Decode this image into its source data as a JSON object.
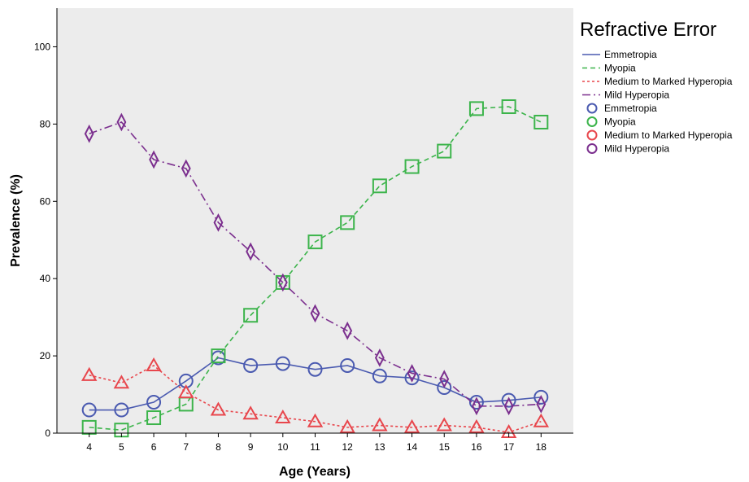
{
  "chart_data": {
    "type": "line",
    "title": "",
    "xlabel": "Age (Years)",
    "ylabel": "Prevalence (%)",
    "x": [
      4,
      5,
      6,
      7,
      8,
      9,
      10,
      11,
      12,
      13,
      14,
      15,
      16,
      17,
      18
    ],
    "x_tick_labels": [
      "4",
      "5",
      "6",
      "7",
      "8",
      "9",
      "10",
      "11",
      "12",
      "13",
      "14",
      "15",
      "16",
      "17",
      "18"
    ],
    "xlim": [
      3,
      19
    ],
    "ylim": [
      0,
      110
    ],
    "y_ticks": [
      0,
      20,
      40,
      60,
      80,
      100
    ],
    "y_tick_labels": [
      "0",
      "20",
      "40",
      "60",
      "80",
      "100"
    ],
    "grid": false,
    "background": "#ececec",
    "legend": {
      "title": "Refractive Error",
      "position": "right",
      "line_entries": [
        "Emmetropia",
        "Myopia",
        "Medium to Marked Hyperopia",
        "Mild Hyperopia"
      ],
      "marker_entries": [
        "Emmetropia",
        "Myopia",
        "Medium to Marked Hyperopia",
        "Mild Hyperopia"
      ]
    },
    "series": [
      {
        "name": "Emmetropia",
        "color": "#4a5ab0",
        "line_style": "solid",
        "marker": "circle",
        "values": [
          6.0,
          6.0,
          8.0,
          13.5,
          19.5,
          17.5,
          18.0,
          16.5,
          17.5,
          14.8,
          14.3,
          11.8,
          8.0,
          8.5,
          9.3
        ]
      },
      {
        "name": "Myopia",
        "color": "#3cb44b",
        "line_style": "dashed",
        "marker": "square",
        "values": [
          1.5,
          0.8,
          4.0,
          7.5,
          20.0,
          30.5,
          39.0,
          49.5,
          54.5,
          64.0,
          69.0,
          73.0,
          84.0,
          84.5,
          80.5
        ]
      },
      {
        "name": "Medium to Marked Hyperopia",
        "color": "#e8464c",
        "line_style": "dotted",
        "marker": "triangle",
        "values": [
          15.0,
          13.0,
          17.5,
          10.5,
          6.0,
          5.0,
          4.0,
          3.0,
          1.5,
          2.0,
          1.5,
          2.0,
          1.5,
          0.2,
          3.0
        ]
      },
      {
        "name": "Mild Hyperopia",
        "color": "#7b2f8e",
        "line_style": "dashdot",
        "marker": "diamond",
        "values": [
          77.5,
          80.5,
          70.8,
          68.5,
          54.5,
          47.0,
          39.0,
          31.0,
          26.5,
          19.5,
          15.5,
          14.0,
          7.0,
          7.0,
          7.5
        ]
      }
    ]
  }
}
